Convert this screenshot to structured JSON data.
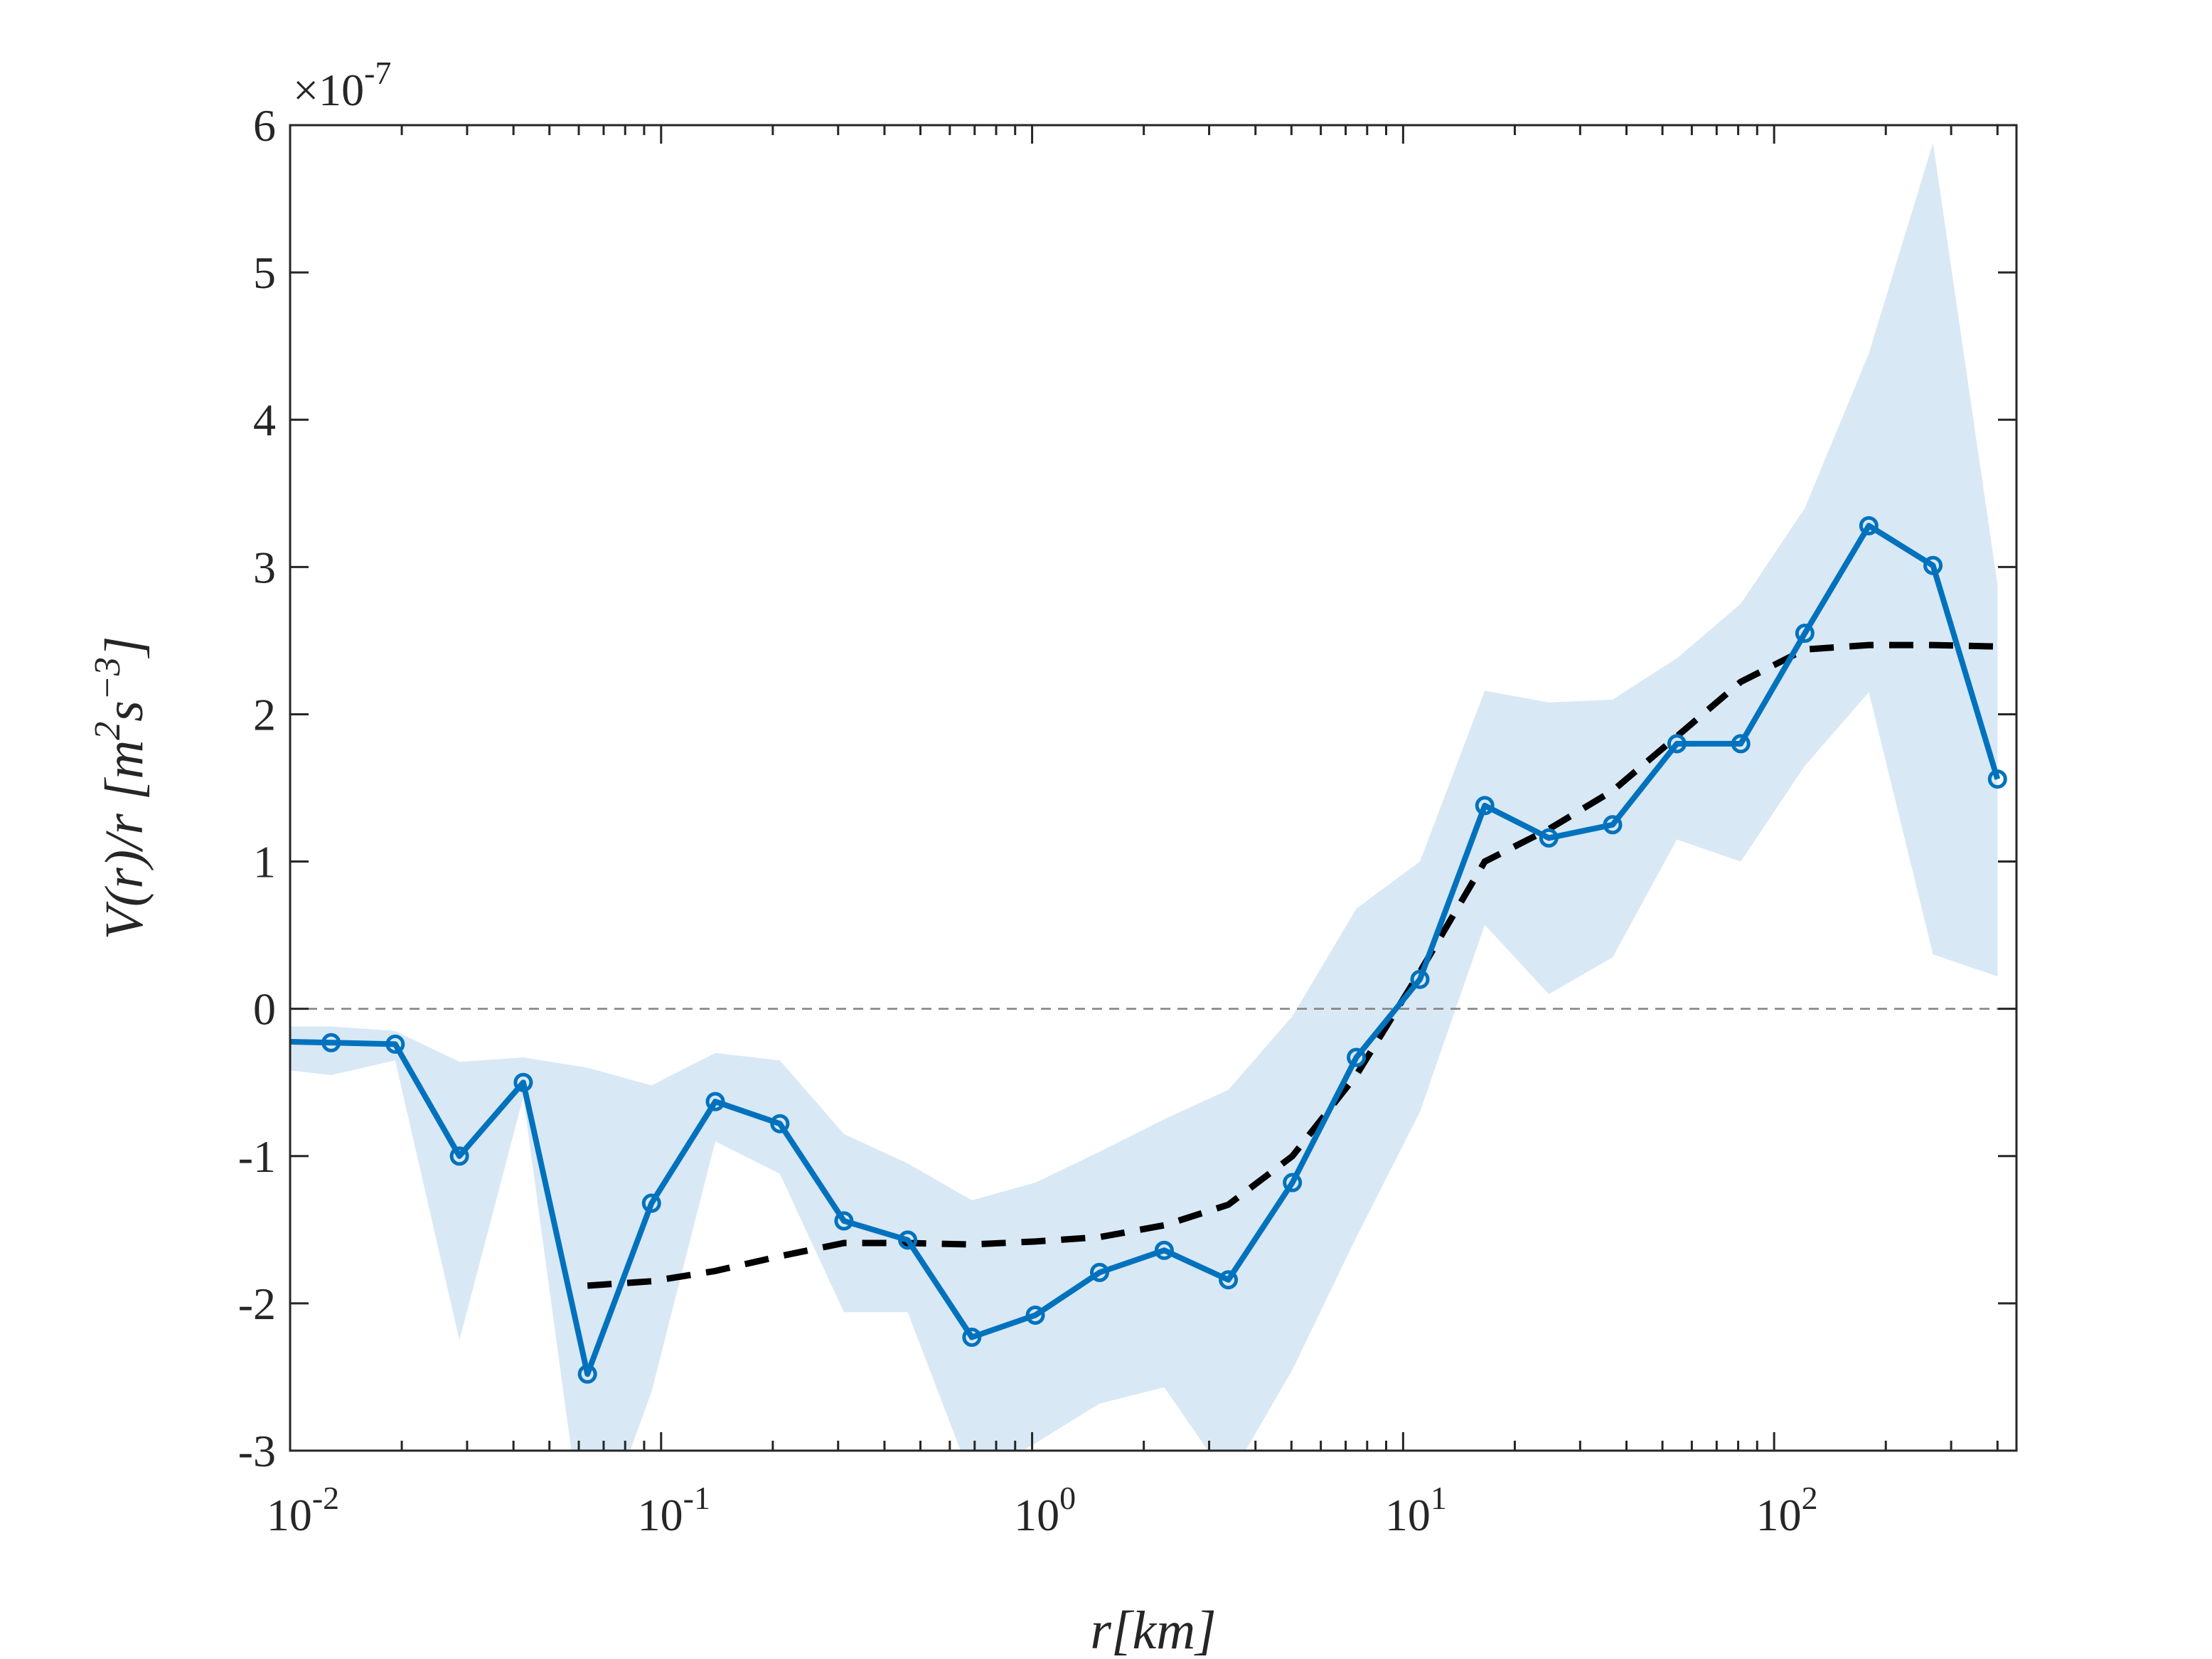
{
  "chart_data": {
    "type": "line",
    "x_scale": "log",
    "xlim": [
      0.01,
      450
    ],
    "ylim": [
      -3e-07,
      6e-07
    ],
    "y_exponent_label": "×10",
    "y_exponent_value": "-7",
    "xlabel": {
      "main": "r",
      "unit": "[km]"
    },
    "ylabel": {
      "prefix": "V(r)/r [m",
      "sup1": "2",
      "mid": "s",
      "sup2": "−3",
      "suffix": "]"
    },
    "y_ticks": [
      "-3",
      "-2",
      "-1",
      "0",
      "1",
      "2",
      "3",
      "4",
      "5",
      "6"
    ],
    "x_ticks": [
      {
        "value": 0.01,
        "base": "10",
        "exp": "-2"
      },
      {
        "value": 0.1,
        "base": "10",
        "exp": "-1"
      },
      {
        "value": 1,
        "base": "10",
        "exp": "0"
      },
      {
        "value": 10,
        "base": "10",
        "exp": "1"
      },
      {
        "value": 100,
        "base": "10",
        "exp": "2"
      }
    ],
    "colors": {
      "series": "#0072BD",
      "band": "#d9e8f5",
      "fit": "#000000",
      "zero": "#808080",
      "axis": "#262626"
    },
    "series": [
      {
        "style": "solid-with-markers",
        "x": [
          0.0086,
          0.0129,
          0.0192,
          0.0286,
          0.0425,
          0.0633,
          0.0942,
          0.14,
          0.209,
          0.311,
          0.462,
          0.688,
          1.02,
          1.52,
          2.27,
          3.38,
          5.03,
          7.48,
          11.1,
          16.6,
          24.7,
          36.7,
          54.7,
          81.3,
          121,
          180,
          268,
          400
        ],
        "y": [
          -2.2e-08,
          -2.3e-08,
          -2.4e-08,
          -1e-07,
          -5e-08,
          -2.48e-07,
          -1.32e-07,
          -6.3e-08,
          -7.8e-08,
          -1.44e-07,
          -1.57e-07,
          -2.23e-07,
          -2.08e-07,
          -1.79e-07,
          -1.64e-07,
          -1.84e-07,
          -1.18e-07,
          -3.3e-08,
          2e-08,
          1.38e-07,
          1.16e-07,
          1.25e-07,
          1.8e-07,
          1.8e-07,
          2.55e-07,
          3.28e-07,
          3.01e-07,
          1.56e-07
        ]
      },
      {
        "style": "dashed",
        "x": [
          0.0633,
          0.0942,
          0.14,
          0.209,
          0.311,
          0.462,
          0.688,
          1.02,
          1.52,
          2.27,
          3.38,
          5.03,
          7.48,
          11.1,
          16.6,
          24.7,
          36.7,
          54.7,
          81.3,
          121,
          180,
          268,
          400
        ],
        "y": [
          -1.88e-07,
          -1.85e-07,
          -1.78e-07,
          -1.68e-07,
          -1.59e-07,
          -1.59e-07,
          -1.6e-07,
          -1.58e-07,
          -1.55e-07,
          -1.47e-07,
          -1.33e-07,
          -1e-07,
          -4.5e-08,
          2.5e-08,
          1e-07,
          1.22e-07,
          1.48e-07,
          1.85e-07,
          2.22e-07,
          2.44e-07,
          2.47e-07,
          2.47e-07,
          2.46e-07
        ]
      }
    ],
    "band": {
      "x": [
        0.0086,
        0.0129,
        0.0192,
        0.0286,
        0.0425,
        0.0633,
        0.0942,
        0.14,
        0.209,
        0.311,
        0.462,
        0.688,
        1.02,
        1.52,
        2.27,
        3.38,
        5.03,
        7.48,
        11.1,
        16.6,
        24.7,
        36.7,
        54.7,
        81.3,
        121,
        180,
        268,
        400
      ],
      "upper": [
        -1.2e-08,
        -1.2e-08,
        -1.5e-08,
        -3.6e-08,
        -3.3e-08,
        -4e-08,
        -5.2e-08,
        -3e-08,
        -3.5e-08,
        -8.5e-08,
        -1.05e-07,
        -1.3e-07,
        -1.18e-07,
        -9.7e-08,
        -7.5e-08,
        -5.5e-08,
        -5e-09,
        6.8e-08,
        1e-07,
        2.16e-07,
        2.08e-07,
        2.1e-07,
        2.38e-07,
        2.75e-07,
        3.4e-07,
        4.45e-07,
        5.88e-07,
        2.88e-07
      ],
      "lower": [
        -4e-08,
        -4.5e-08,
        -3.5e-08,
        -2.25e-07,
        -6e-08,
        -3.8e-07,
        -2.6e-07,
        -9e-08,
        -1.12e-07,
        -2.06e-07,
        -2.06e-07,
        -3.2e-07,
        -2.95e-07,
        -2.68e-07,
        -2.57e-07,
        -3.2e-07,
        -2.45e-07,
        -1.55e-07,
        -7e-08,
        5.7e-08,
        1e-08,
        3.5e-08,
        1.15e-07,
        1e-07,
        1.65e-07,
        2.15e-07,
        3.7e-08,
        2.2e-08
      ]
    },
    "zero_line": 0,
    "grid": false,
    "legend": "none"
  }
}
